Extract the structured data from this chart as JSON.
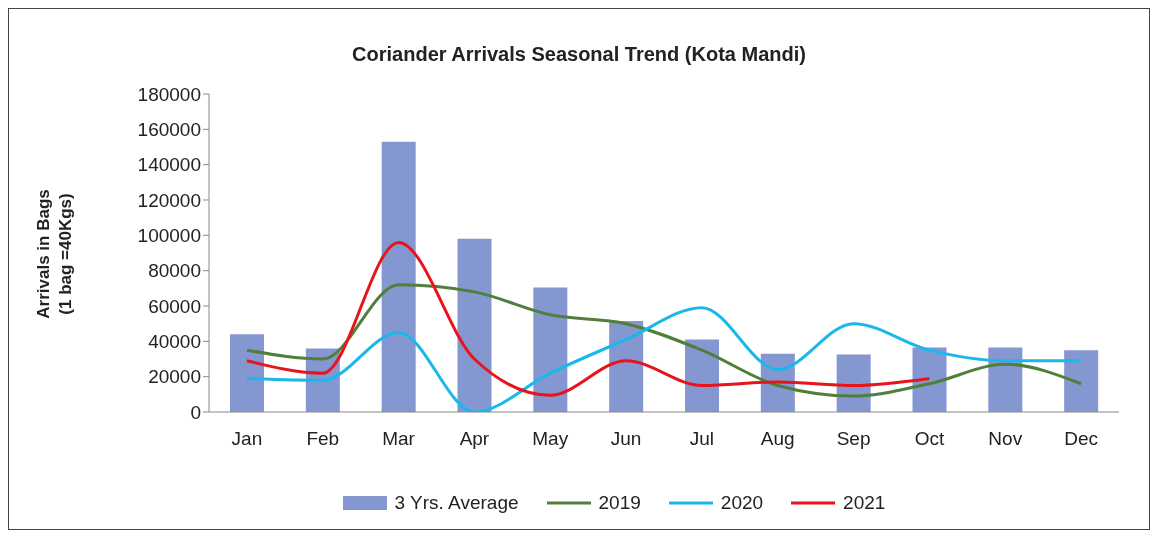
{
  "chart_data": {
    "type": "bar",
    "title": "Coriander Arrivals Seasonal Trend (Kota Mandi)",
    "ylabel": "Arrivals in Bags\n(1 bag =40Kgs)",
    "categories": [
      "Jan",
      "Feb",
      "Mar",
      "Apr",
      "May",
      "Jun",
      "Jul",
      "Aug",
      "Sep",
      "Oct",
      "Nov",
      "Dec"
    ],
    "series": [
      {
        "name": "3 Yrs. Average",
        "color": "#8497d0",
        "values": [
          44000,
          36000,
          153000,
          98000,
          70500,
          51500,
          41000,
          33000,
          32500,
          36500,
          36500,
          35000
        ]
      },
      {
        "name": "2019",
        "type": "line",
        "color": "#4f7f3a",
        "values": [
          35000,
          30000,
          72000,
          68000,
          55000,
          50000,
          35000,
          15000,
          9000,
          16000,
          27000,
          16000
        ]
      },
      {
        "name": "2020",
        "type": "line",
        "color": "#1ab8ea",
        "values": [
          19000,
          18000,
          45000,
          0,
          22000,
          41000,
          59000,
          24000,
          50000,
          35000,
          29000,
          29000
        ]
      },
      {
        "name": "2021",
        "type": "line",
        "color": "#e8141c",
        "values": [
          29000,
          22000,
          96000,
          30000,
          9500,
          29000,
          15000,
          17000,
          15000,
          19000,
          null,
          null
        ]
      }
    ],
    "ylim": [
      0,
      180000
    ],
    "yticks": [
      0,
      20000,
      40000,
      60000,
      80000,
      100000,
      120000,
      140000,
      160000,
      180000
    ],
    "grid": false,
    "legend": "bottom",
    "marker": "none"
  }
}
